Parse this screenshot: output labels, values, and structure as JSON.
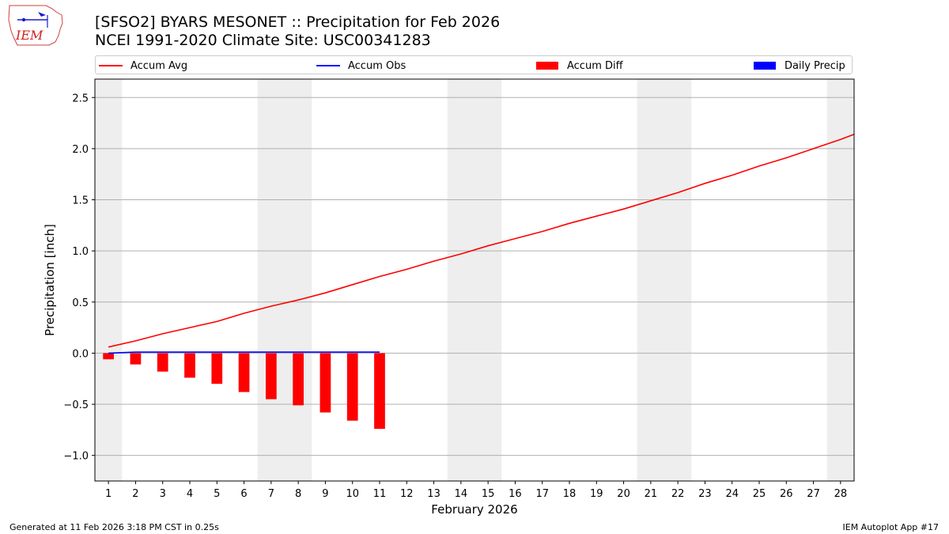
{
  "header": {
    "logo_text": "IEM",
    "title_line1": "[SFSO2] BYARS MESONET :: Precipitation for Feb 2026",
    "title_line2": "NCEI 1991-2020 Climate Site: USC00341283"
  },
  "legend": {
    "items": [
      {
        "label": "Accum Avg",
        "kind": "line",
        "color": "#ff0000"
      },
      {
        "label": "Accum Obs",
        "kind": "line",
        "color": "#0000ff"
      },
      {
        "label": "Accum Diff",
        "kind": "box",
        "color": "#ff0000"
      },
      {
        "label": "Daily Precip",
        "kind": "box",
        "color": "#0000ff"
      }
    ]
  },
  "footer": {
    "left": "Generated at 11 Feb 2026 3:18 PM CST in 0.25s",
    "right": "IEM Autoplot App #17"
  },
  "chart_data": {
    "type": "line",
    "xlabel": "February 2026",
    "ylabel": "Precipitation [inch]",
    "xlim": [
      0.5,
      28.5
    ],
    "ylim": [
      -1.25,
      2.68
    ],
    "x_ticks": [
      1,
      2,
      3,
      4,
      5,
      6,
      7,
      8,
      9,
      10,
      11,
      12,
      13,
      14,
      15,
      16,
      17,
      18,
      19,
      20,
      21,
      22,
      23,
      24,
      25,
      26,
      27,
      28
    ],
    "y_ticks": [
      -1.0,
      -0.5,
      0.0,
      0.5,
      1.0,
      1.5,
      2.0,
      2.5
    ],
    "y_tick_labels": [
      "−1.0",
      "−0.5",
      "0.0",
      "0.5",
      "1.0",
      "1.5",
      "2.0",
      "2.5"
    ],
    "grid": "horizontal",
    "weekend_shading": [
      [
        0.5,
        1.5
      ],
      [
        6.5,
        8.5
      ],
      [
        13.5,
        15.5
      ],
      [
        20.5,
        22.5
      ],
      [
        27.5,
        28.5
      ]
    ],
    "series": [
      {
        "name": "Accum Avg",
        "type": "line",
        "color": "#ff0000",
        "x": [
          1,
          2,
          3,
          4,
          5,
          6,
          7,
          8,
          9,
          10,
          11,
          12,
          13,
          14,
          15,
          16,
          17,
          18,
          19,
          20,
          21,
          22,
          23,
          24,
          25,
          26,
          27,
          28,
          28.5
        ],
        "values": [
          0.06,
          0.12,
          0.19,
          0.25,
          0.31,
          0.39,
          0.46,
          0.52,
          0.59,
          0.67,
          0.75,
          0.82,
          0.9,
          0.97,
          1.05,
          1.12,
          1.19,
          1.27,
          1.34,
          1.41,
          1.49,
          1.57,
          1.66,
          1.74,
          1.83,
          1.91,
          2.0,
          2.09,
          2.14
        ]
      },
      {
        "name": "Accum Obs",
        "type": "line",
        "color": "#0000ff",
        "x": [
          1,
          2,
          3,
          4,
          5,
          6,
          7,
          8,
          9,
          10,
          11
        ],
        "values": [
          0.0,
          0.01,
          0.01,
          0.01,
          0.01,
          0.01,
          0.01,
          0.01,
          0.01,
          0.01,
          0.01
        ]
      },
      {
        "name": "Accum Diff",
        "type": "bar",
        "color": "#ff0000",
        "x": [
          1,
          2,
          3,
          4,
          5,
          6,
          7,
          8,
          9,
          10,
          11
        ],
        "values": [
          -0.06,
          -0.11,
          -0.18,
          -0.24,
          -0.3,
          -0.38,
          -0.45,
          -0.51,
          -0.58,
          -0.66,
          -0.74
        ]
      },
      {
        "name": "Daily Precip",
        "type": "bar",
        "color": "#0000ff",
        "x": [],
        "values": []
      }
    ]
  }
}
